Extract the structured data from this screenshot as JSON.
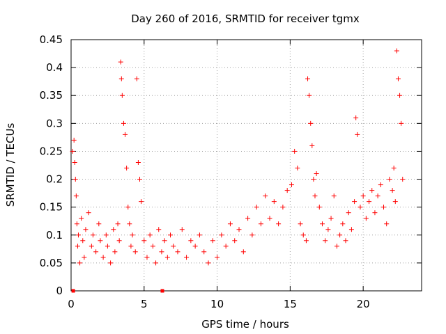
{
  "chart_data": {
    "type": "scatter",
    "title": "Day 260 of 2016, SRMTID for receiver tgmx",
    "xlabel": "GPS time / hours",
    "ylabel": "SRMTID / TECUs",
    "xlim": [
      0,
      24
    ],
    "ylim": [
      0,
      0.45
    ],
    "x_ticks": [
      0,
      5,
      10,
      15,
      20
    ],
    "x_tick_labels": [
      "0",
      "5",
      "10",
      "15",
      "20"
    ],
    "y_ticks": [
      0,
      0.05,
      0.1,
      0.15,
      0.2,
      0.25,
      0.3,
      0.35,
      0.4,
      0.45
    ],
    "y_tick_labels": [
      "0",
      "0.05",
      "0.1",
      "0.15",
      "0.2",
      "0.25",
      "0.3",
      "0.35",
      "0.4",
      "0.45"
    ],
    "grid": true,
    "marker": "+",
    "series": [
      {
        "name": "SRMTID",
        "color": "#ff0000",
        "x": [
          0.1,
          0.2,
          0.25,
          0.3,
          0.35,
          0.4,
          0.45,
          0.5,
          0.6,
          0.7,
          0.8,
          0.9,
          1.0,
          1.2,
          1.4,
          1.5,
          1.7,
          1.9,
          2.0,
          2.2,
          2.4,
          2.5,
          2.7,
          2.9,
          3.0,
          3.2,
          3.3,
          3.4,
          3.45,
          3.5,
          3.6,
          3.7,
          3.8,
          3.9,
          4.0,
          4.1,
          4.2,
          4.4,
          4.5,
          4.6,
          4.7,
          4.8,
          5.0,
          5.2,
          5.4,
          5.6,
          5.8,
          6.0,
          6.2,
          6.4,
          6.6,
          6.8,
          7.0,
          7.3,
          7.6,
          7.9,
          8.2,
          8.5,
          8.8,
          9.1,
          9.4,
          9.7,
          10.0,
          10.3,
          10.6,
          10.9,
          11.2,
          11.5,
          11.8,
          12.1,
          12.4,
          12.7,
          13.0,
          13.3,
          13.6,
          13.9,
          14.2,
          14.5,
          14.8,
          15.1,
          15.3,
          15.5,
          15.7,
          15.9,
          16.1,
          16.2,
          16.3,
          16.4,
          16.5,
          16.6,
          16.7,
          16.8,
          17.0,
          17.2,
          17.4,
          17.6,
          17.8,
          18.0,
          18.2,
          18.4,
          18.6,
          18.8,
          19.0,
          19.2,
          19.4,
          19.5,
          19.6,
          19.8,
          20.0,
          20.2,
          20.4,
          20.6,
          20.8,
          21.0,
          21.2,
          21.4,
          21.6,
          21.8,
          22.0,
          22.1,
          22.2,
          22.3,
          22.4,
          22.5,
          22.6,
          22.7
        ],
        "y": [
          0.25,
          0.27,
          0.23,
          0.2,
          0.17,
          0.12,
          0.08,
          0.1,
          0.05,
          0.13,
          0.09,
          0.06,
          0.11,
          0.14,
          0.08,
          0.1,
          0.07,
          0.12,
          0.09,
          0.06,
          0.1,
          0.08,
          0.05,
          0.11,
          0.07,
          0.12,
          0.09,
          0.41,
          0.38,
          0.35,
          0.3,
          0.28,
          0.22,
          0.15,
          0.12,
          0.08,
          0.1,
          0.07,
          0.38,
          0.23,
          0.2,
          0.16,
          0.09,
          0.06,
          0.1,
          0.08,
          0.05,
          0.11,
          0.07,
          0.09,
          0.06,
          0.1,
          0.08,
          0.07,
          0.11,
          0.06,
          0.09,
          0.08,
          0.1,
          0.07,
          0.05,
          0.09,
          0.06,
          0.1,
          0.08,
          0.12,
          0.09,
          0.11,
          0.07,
          0.13,
          0.1,
          0.15,
          0.12,
          0.17,
          0.13,
          0.16,
          0.12,
          0.15,
          0.18,
          0.19,
          0.25,
          0.22,
          0.12,
          0.1,
          0.09,
          0.38,
          0.35,
          0.3,
          0.26,
          0.2,
          0.17,
          0.21,
          0.15,
          0.12,
          0.09,
          0.11,
          0.13,
          0.17,
          0.08,
          0.1,
          0.12,
          0.09,
          0.14,
          0.11,
          0.16,
          0.31,
          0.28,
          0.15,
          0.17,
          0.13,
          0.16,
          0.18,
          0.14,
          0.17,
          0.19,
          0.15,
          0.12,
          0.2,
          0.18,
          0.22,
          0.16,
          0.43,
          0.38,
          0.35,
          0.3,
          0.2
        ],
        "baseline_markers_x": [
          0.15,
          6.25
        ],
        "baseline_markers_y": [
          0,
          0
        ]
      }
    ]
  }
}
